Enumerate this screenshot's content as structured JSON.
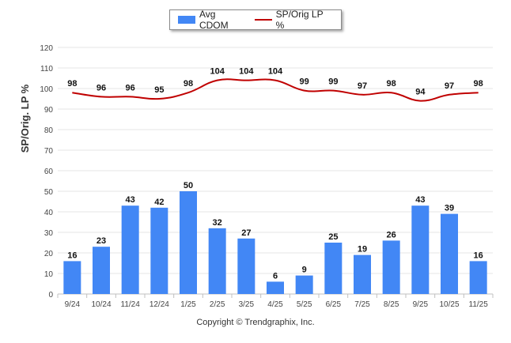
{
  "chart_data": {
    "type": "bar",
    "categories": [
      "9/24",
      "10/24",
      "11/24",
      "12/24",
      "1/25",
      "2/25",
      "3/25",
      "4/25",
      "5/25",
      "6/25",
      "7/25",
      "8/25",
      "9/25",
      "10/25",
      "11/25"
    ],
    "series": [
      {
        "name": "Avg CDOM",
        "type": "bar",
        "color": "#4287f5",
        "values": [
          16,
          23,
          43,
          42,
          50,
          32,
          27,
          6,
          9,
          25,
          19,
          26,
          43,
          39,
          16
        ]
      },
      {
        "name": "SP/Orig LP %",
        "type": "line",
        "color": "#c00000",
        "values": [
          98,
          96,
          96,
          95,
          98,
          104,
          104,
          104,
          99,
          99,
          97,
          98,
          94,
          97,
          98
        ]
      }
    ],
    "ylabel": "SP/Orig. LP %",
    "yticks": [
      0,
      10,
      20,
      30,
      40,
      50,
      60,
      70,
      80,
      90,
      100,
      110,
      120
    ],
    "ylim": [
      0,
      120
    ],
    "grid": true,
    "legend_position": "top-center"
  },
  "legend": {
    "bar_label": "Avg CDOM",
    "line_label": "SP/Orig LP %"
  },
  "footer": "Copyright © Trendgraphix, Inc.",
  "colors": {
    "bar": "#4287f5",
    "line": "#c00000",
    "grid": "#e6e6e6"
  }
}
